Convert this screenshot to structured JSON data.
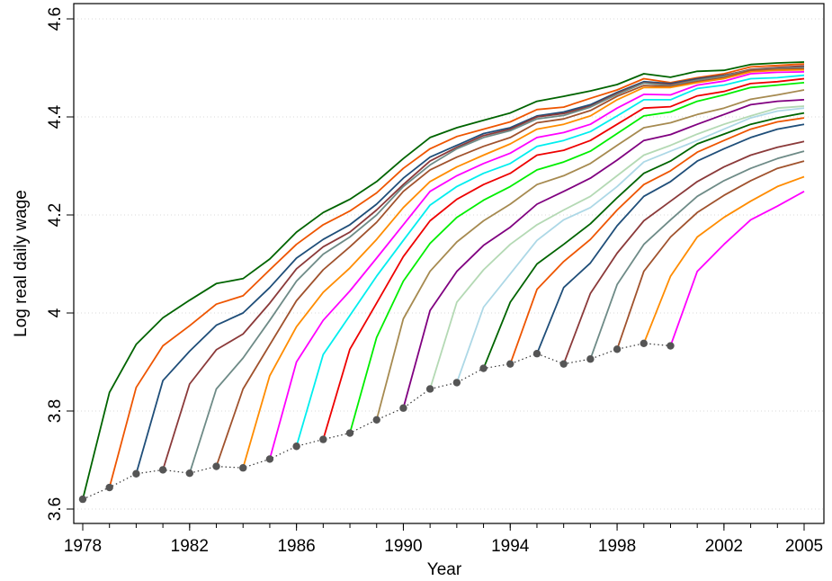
{
  "chart_data": {
    "type": "line",
    "title": "",
    "xlabel": "Year",
    "ylabel": "Log real daily wage",
    "xlim": [
      1978,
      2005
    ],
    "ylim": [
      3.58,
      4.62
    ],
    "x_ticks": [
      1978,
      1982,
      1986,
      1990,
      1994,
      1998,
      2002,
      2005
    ],
    "y_ticks": [
      3.6,
      3.8,
      4,
      4.2,
      4.4,
      4.6
    ],
    "x_tick_labels": [
      "1978",
      "1982",
      "1986",
      "1990",
      "1994",
      "1998",
      "2002",
      "2005"
    ],
    "y_tick_labels": [
      "3.6",
      "3.8",
      "4",
      "4.2",
      "4.4",
      "4.6"
    ],
    "grid": "horizontal dotted",
    "legend": "none",
    "entry_points": {
      "style": "dotted gray line with dark gray markers",
      "color": "#555555",
      "x": [
        1978,
        1979,
        1980,
        1981,
        1982,
        1983,
        1984,
        1985,
        1986,
        1987,
        1988,
        1989,
        1990,
        1991,
        1992,
        1993,
        1994,
        1995,
        1996,
        1997,
        1998,
        1999,
        2000
      ],
      "y": [
        3.62,
        3.644,
        3.672,
        3.68,
        3.673,
        3.687,
        3.684,
        3.702,
        3.728,
        3.742,
        3.755,
        3.782,
        3.806,
        3.845,
        3.858,
        3.887,
        3.896,
        3.917,
        3.896,
        3.906,
        3.926,
        3.938,
        3.933
      ]
    },
    "series": [
      {
        "color": "#006400",
        "x": [
          1978,
          1979,
          1980,
          1981,
          1982,
          1983,
          1984,
          1985,
          1986,
          1987,
          1988,
          1989,
          1990,
          1991,
          1992,
          1993,
          1994,
          1995,
          1996,
          1997,
          1998,
          1999,
          2000,
          2001,
          2002,
          2003,
          2004,
          2005
        ],
        "y": [
          3.62,
          3.838,
          3.936,
          3.99,
          4.026,
          4.06,
          4.07,
          4.11,
          4.165,
          4.205,
          4.232,
          4.268,
          4.315,
          4.358,
          4.378,
          4.393,
          4.408,
          4.432,
          4.442,
          4.453,
          4.466,
          4.488,
          4.481,
          4.493,
          4.495,
          4.507,
          4.51,
          4.512
        ]
      },
      {
        "color": "#EE5500",
        "x": [
          1979,
          1980,
          1981,
          1982,
          1983,
          1984,
          1985,
          1986,
          1987,
          1988,
          1989,
          1990,
          1991,
          1992,
          1993,
          1994,
          1995,
          1996,
          1997,
          1998,
          1999,
          2000,
          2001,
          2002,
          2003,
          2004,
          2005
        ],
        "y": [
          3.644,
          3.848,
          3.933,
          3.974,
          4.018,
          4.035,
          4.088,
          4.14,
          4.18,
          4.208,
          4.245,
          4.295,
          4.335,
          4.36,
          4.375,
          4.39,
          4.415,
          4.42,
          4.438,
          4.455,
          4.478,
          4.47,
          4.48,
          4.488,
          4.502,
          4.505,
          4.508
        ]
      },
      {
        "color": "#1F4E79",
        "x": [
          1980,
          1981,
          1982,
          1983,
          1984,
          1985,
          1986,
          1987,
          1988,
          1989,
          1990,
          1991,
          1992,
          1993,
          1994,
          1995,
          1996,
          1997,
          1998,
          1999,
          2000,
          2001,
          2002,
          2003,
          2004,
          2005
        ],
        "y": [
          3.672,
          3.862,
          3.922,
          3.975,
          4.0,
          4.052,
          4.112,
          4.15,
          4.18,
          4.222,
          4.275,
          4.318,
          4.342,
          4.366,
          4.378,
          4.402,
          4.41,
          4.425,
          4.45,
          4.472,
          4.468,
          4.478,
          4.485,
          4.496,
          4.5,
          4.502
        ]
      },
      {
        "color": "#8B3A3A",
        "x": [
          1981,
          1982,
          1983,
          1984,
          1985,
          1986,
          1987,
          1988,
          1989,
          1990,
          1991,
          1992,
          1993,
          1994,
          1995,
          1996,
          1997,
          1998,
          1999,
          2000,
          2001,
          2002,
          2003,
          2004,
          2005
        ],
        "y": [
          3.68,
          3.855,
          3.925,
          3.957,
          4.02,
          4.09,
          4.135,
          4.165,
          4.21,
          4.262,
          4.31,
          4.338,
          4.362,
          4.375,
          4.4,
          4.407,
          4.422,
          4.448,
          4.47,
          4.466,
          4.476,
          4.484,
          4.497,
          4.501,
          4.504
        ]
      },
      {
        "color": "#6E8B87",
        "x": [
          1982,
          1983,
          1984,
          1985,
          1986,
          1987,
          1988,
          1989,
          1990,
          1991,
          1992,
          1993,
          1994,
          1995,
          1996,
          1997,
          1998,
          1999,
          2000,
          2001,
          2002,
          2003,
          2004,
          2005
        ],
        "y": [
          3.673,
          3.845,
          3.908,
          3.985,
          4.065,
          4.12,
          4.155,
          4.2,
          4.258,
          4.302,
          4.335,
          4.358,
          4.372,
          4.396,
          4.403,
          4.42,
          4.446,
          4.469,
          4.464,
          4.475,
          4.483,
          4.496,
          4.499,
          4.501
        ]
      },
      {
        "color": "#A0522D",
        "x": [
          1983,
          1984,
          1985,
          1986,
          1987,
          1988,
          1989,
          1990,
          1991,
          1992,
          1993,
          1994,
          1995,
          1996,
          1997,
          1998,
          1999,
          2000,
          2001,
          2002,
          2003,
          2004,
          2005
        ],
        "y": [
          3.687,
          3.845,
          3.935,
          4.025,
          4.088,
          4.135,
          4.185,
          4.248,
          4.292,
          4.318,
          4.34,
          4.358,
          4.388,
          4.396,
          4.413,
          4.442,
          4.464,
          4.462,
          4.472,
          4.48,
          4.495,
          4.497,
          4.498
        ]
      },
      {
        "color": "#FF8C00",
        "x": [
          1984,
          1985,
          1986,
          1987,
          1988,
          1989,
          1990,
          1991,
          1992,
          1993,
          1994,
          1995,
          1996,
          1997,
          1998,
          1999,
          2000,
          2001,
          2002,
          2003,
          2004,
          2005
        ],
        "y": [
          3.684,
          3.872,
          3.972,
          4.042,
          4.092,
          4.15,
          4.215,
          4.268,
          4.298,
          4.322,
          4.345,
          4.375,
          4.385,
          4.402,
          4.435,
          4.46,
          4.46,
          4.47,
          4.478,
          4.492,
          4.495,
          4.496
        ]
      },
      {
        "color": "#FF00FF",
        "x": [
          1985,
          1986,
          1987,
          1988,
          1989,
          1990,
          1991,
          1992,
          1993,
          1994,
          1995,
          1996,
          1997,
          1998,
          1999,
          2000,
          2001,
          2002,
          2003,
          2004,
          2005
        ],
        "y": [
          3.702,
          3.9,
          3.985,
          4.045,
          4.112,
          4.18,
          4.248,
          4.28,
          4.305,
          4.326,
          4.358,
          4.368,
          4.385,
          4.418,
          4.446,
          4.445,
          4.465,
          4.473,
          4.488,
          4.491,
          4.492
        ]
      },
      {
        "color": "#00EEEE",
        "x": [
          1986,
          1987,
          1988,
          1989,
          1990,
          1991,
          1992,
          1993,
          1994,
          1995,
          1996,
          1997,
          1998,
          1999,
          2000,
          2001,
          2002,
          2003,
          2004,
          2005
        ],
        "y": [
          3.728,
          3.915,
          3.995,
          4.075,
          4.148,
          4.22,
          4.258,
          4.285,
          4.305,
          4.34,
          4.352,
          4.37,
          4.402,
          4.435,
          4.435,
          4.458,
          4.465,
          4.478,
          4.48,
          4.485
        ]
      },
      {
        "color": "#EE0000",
        "x": [
          1987,
          1988,
          1989,
          1990,
          1991,
          1992,
          1993,
          1994,
          1995,
          1996,
          1997,
          1998,
          1999,
          2000,
          2001,
          2002,
          2003,
          2004,
          2005
        ],
        "y": [
          3.742,
          3.926,
          4.02,
          4.115,
          4.188,
          4.232,
          4.262,
          4.285,
          4.322,
          4.332,
          4.352,
          4.385,
          4.418,
          4.421,
          4.443,
          4.452,
          4.468,
          4.472,
          4.478
        ]
      },
      {
        "color": "#00EE00",
        "x": [
          1988,
          1989,
          1990,
          1991,
          1992,
          1993,
          1994,
          1995,
          1996,
          1997,
          1998,
          1999,
          2000,
          2001,
          2002,
          2003,
          2004,
          2005
        ],
        "y": [
          3.755,
          3.95,
          4.065,
          4.142,
          4.195,
          4.23,
          4.258,
          4.292,
          4.308,
          4.33,
          4.366,
          4.402,
          4.41,
          4.432,
          4.445,
          4.46,
          4.465,
          4.47
        ]
      },
      {
        "color": "#A68A50",
        "x": [
          1989,
          1990,
          1991,
          1992,
          1993,
          1994,
          1995,
          1996,
          1997,
          1998,
          1999,
          2000,
          2001,
          2002,
          2003,
          2004,
          2005
        ],
        "y": [
          3.782,
          3.988,
          4.085,
          4.145,
          4.188,
          4.222,
          4.262,
          4.28,
          4.305,
          4.342,
          4.378,
          4.388,
          4.405,
          4.418,
          4.436,
          4.445,
          4.455
        ]
      },
      {
        "color": "#800080",
        "x": [
          1990,
          1991,
          1992,
          1993,
          1994,
          1995,
          1996,
          1997,
          1998,
          1999,
          2000,
          2001,
          2002,
          2003,
          2004,
          2005
        ],
        "y": [
          3.806,
          4.005,
          4.085,
          4.138,
          4.175,
          4.222,
          4.248,
          4.275,
          4.312,
          4.352,
          4.364,
          4.385,
          4.405,
          4.425,
          4.432,
          4.435
        ]
      },
      {
        "color": "#B4D9B4",
        "x": [
          1991,
          1992,
          1993,
          1994,
          1995,
          1996,
          1997,
          1998,
          1999,
          2000,
          2001,
          2002,
          2003,
          2004,
          2005
        ],
        "y": [
          3.845,
          4.022,
          4.088,
          4.14,
          4.18,
          4.21,
          4.238,
          4.28,
          4.322,
          4.342,
          4.365,
          4.385,
          4.402,
          4.418,
          4.422
        ]
      },
      {
        "color": "#ADD8E6",
        "x": [
          1992,
          1993,
          1994,
          1995,
          1996,
          1997,
          1998,
          1999,
          2000,
          2001,
          2002,
          2003,
          2004,
          2005
        ],
        "y": [
          3.858,
          4.012,
          4.08,
          4.148,
          4.19,
          4.215,
          4.258,
          4.308,
          4.33,
          4.352,
          4.375,
          4.398,
          4.412,
          4.418
        ]
      },
      {
        "color": "#006400",
        "x": [
          1993,
          1994,
          1995,
          1996,
          1997,
          1998,
          1999,
          2000,
          2001,
          2002,
          2003,
          2004,
          2005
        ],
        "y": [
          3.887,
          4.022,
          4.1,
          4.14,
          4.182,
          4.235,
          4.285,
          4.31,
          4.345,
          4.365,
          4.385,
          4.398,
          4.408
        ]
      },
      {
        "color": "#EE5500",
        "x": [
          1994,
          1995,
          1996,
          1997,
          1998,
          1999,
          2000,
          2001,
          2002,
          2003,
          2004,
          2005
        ],
        "y": [
          3.896,
          4.048,
          4.105,
          4.15,
          4.21,
          4.262,
          4.29,
          4.328,
          4.352,
          4.375,
          4.39,
          4.398
        ]
      },
      {
        "color": "#1F4E79",
        "x": [
          1995,
          1996,
          1997,
          1998,
          1999,
          2000,
          2001,
          2002,
          2003,
          2004,
          2005
        ],
        "y": [
          3.917,
          4.052,
          4.102,
          4.178,
          4.238,
          4.268,
          4.31,
          4.335,
          4.358,
          4.375,
          4.385
        ]
      },
      {
        "color": "#8B3A3A",
        "x": [
          1996,
          1997,
          1998,
          1999,
          2000,
          2001,
          2002,
          2003,
          2004,
          2005
        ],
        "y": [
          3.896,
          4.04,
          4.122,
          4.188,
          4.228,
          4.268,
          4.298,
          4.322,
          4.338,
          4.35
        ]
      },
      {
        "color": "#6E8B87",
        "x": [
          1997,
          1998,
          1999,
          2000,
          2001,
          2002,
          2003,
          2004,
          2005
        ],
        "y": [
          3.906,
          4.058,
          4.14,
          4.19,
          4.238,
          4.27,
          4.295,
          4.315,
          4.33
        ]
      },
      {
        "color": "#A0522D",
        "x": [
          1998,
          1999,
          2000,
          2001,
          2002,
          2003,
          2004,
          2005
        ],
        "y": [
          3.926,
          4.085,
          4.155,
          4.205,
          4.24,
          4.27,
          4.295,
          4.31
        ]
      },
      {
        "color": "#FF8C00",
        "x": [
          1999,
          2000,
          2001,
          2002,
          2003,
          2004,
          2005
        ],
        "y": [
          3.938,
          4.075,
          4.155,
          4.195,
          4.228,
          4.258,
          4.278
        ]
      },
      {
        "color": "#FF00FF",
        "x": [
          2000,
          2001,
          2002,
          2003,
          2004,
          2005
        ],
        "y": [
          3.933,
          4.085,
          4.14,
          4.19,
          4.218,
          4.248
        ]
      }
    ]
  }
}
